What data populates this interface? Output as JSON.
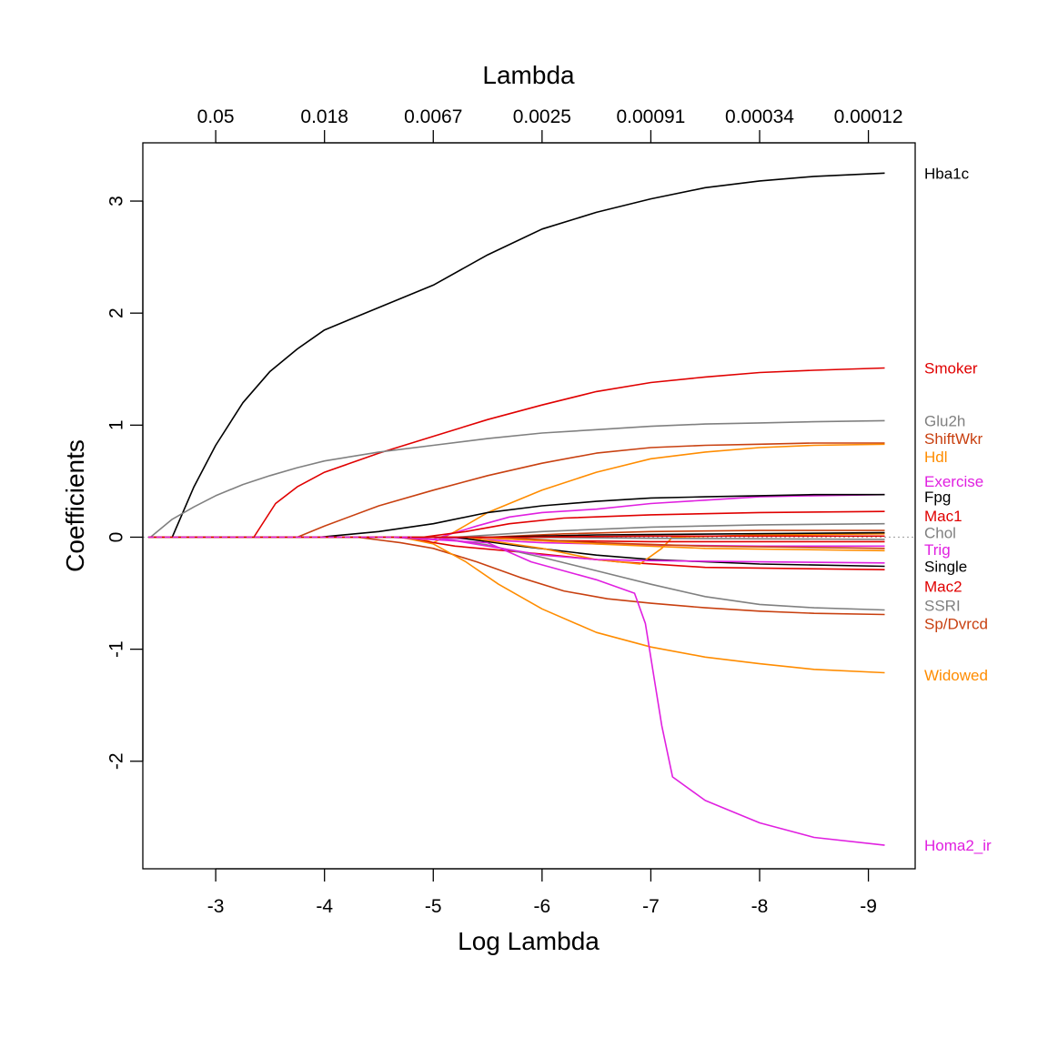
{
  "chart_data": {
    "type": "line",
    "title": "",
    "top_axis_title": "Lambda",
    "xlabel": "Log Lambda",
    "ylabel": "Coefficients",
    "xlim": [
      -2.33,
      -9.43
    ],
    "ylim": [
      -2.96,
      3.52
    ],
    "x_ticks": [
      {
        "value": -3,
        "label": "-3"
      },
      {
        "value": -4,
        "label": "-4"
      },
      {
        "value": -5,
        "label": "-5"
      },
      {
        "value": -6,
        "label": "-6"
      },
      {
        "value": -7,
        "label": "-7"
      },
      {
        "value": -8,
        "label": "-8"
      },
      {
        "value": -9,
        "label": "-9"
      }
    ],
    "y_ticks": [
      {
        "value": -2,
        "label": "-2"
      },
      {
        "value": -1,
        "label": "-1"
      },
      {
        "value": 0,
        "label": "0"
      },
      {
        "value": 1,
        "label": "1"
      },
      {
        "value": 2,
        "label": "2"
      },
      {
        "value": 3,
        "label": "3"
      }
    ],
    "top_ticks": [
      {
        "value": -3,
        "label": "0.05"
      },
      {
        "value": -4,
        "label": "0.018"
      },
      {
        "value": -5,
        "label": "0.0067"
      },
      {
        "value": -6,
        "label": "0.0025"
      },
      {
        "value": -7,
        "label": "0.00091"
      },
      {
        "value": -8,
        "label": "0.00034"
      },
      {
        "value": -9,
        "label": "0.00012"
      }
    ],
    "zero_line": {
      "value": 0,
      "color": "#aaaaaa"
    },
    "label_x": -9.2,
    "series": [
      {
        "name": "Hba1c",
        "color": "#000000",
        "label_y": 3.25,
        "points": [
          [
            -2.6,
            0
          ],
          [
            -2.8,
            0.45
          ],
          [
            -3.0,
            0.82
          ],
          [
            -3.25,
            1.2
          ],
          [
            -3.5,
            1.48
          ],
          [
            -3.75,
            1.68
          ],
          [
            -4.0,
            1.85
          ],
          [
            -4.5,
            2.05
          ],
          [
            -5.0,
            2.25
          ],
          [
            -5.5,
            2.52
          ],
          [
            -6.0,
            2.75
          ],
          [
            -6.5,
            2.9
          ],
          [
            -7.0,
            3.02
          ],
          [
            -7.5,
            3.12
          ],
          [
            -8.0,
            3.18
          ],
          [
            -8.5,
            3.22
          ],
          [
            -9.15,
            3.25
          ]
        ]
      },
      {
        "name": "Smoker",
        "color": "#e00000",
        "label_y": 1.51,
        "points": [
          [
            -3.35,
            0
          ],
          [
            -3.55,
            0.3
          ],
          [
            -3.75,
            0.45
          ],
          [
            -4.0,
            0.58
          ],
          [
            -4.5,
            0.75
          ],
          [
            -5.0,
            0.9
          ],
          [
            -5.5,
            1.05
          ],
          [
            -6.0,
            1.18
          ],
          [
            -6.5,
            1.3
          ],
          [
            -7.0,
            1.38
          ],
          [
            -7.5,
            1.43
          ],
          [
            -8.0,
            1.47
          ],
          [
            -8.5,
            1.49
          ],
          [
            -9.15,
            1.51
          ]
        ]
      },
      {
        "name": "Glu2h",
        "color": "#808080",
        "label_y": 1.04,
        "points": [
          [
            -2.4,
            0
          ],
          [
            -2.6,
            0.16
          ],
          [
            -2.8,
            0.27
          ],
          [
            -3.0,
            0.37
          ],
          [
            -3.25,
            0.47
          ],
          [
            -3.5,
            0.55
          ],
          [
            -3.75,
            0.62
          ],
          [
            -4.0,
            0.68
          ],
          [
            -4.5,
            0.76
          ],
          [
            -5.0,
            0.82
          ],
          [
            -5.5,
            0.88
          ],
          [
            -6.0,
            0.93
          ],
          [
            -6.5,
            0.96
          ],
          [
            -7.0,
            0.99
          ],
          [
            -7.5,
            1.01
          ],
          [
            -8.0,
            1.02
          ],
          [
            -8.5,
            1.03
          ],
          [
            -9.15,
            1.04
          ]
        ]
      },
      {
        "name": "ShiftWkr",
        "color": "#c84010",
        "label_y": 0.88,
        "points": [
          [
            -3.75,
            0
          ],
          [
            -4.0,
            0.1
          ],
          [
            -4.5,
            0.28
          ],
          [
            -5.0,
            0.42
          ],
          [
            -5.5,
            0.55
          ],
          [
            -6.0,
            0.66
          ],
          [
            -6.5,
            0.75
          ],
          [
            -7.0,
            0.8
          ],
          [
            -7.5,
            0.82
          ],
          [
            -8.0,
            0.83
          ],
          [
            -8.5,
            0.84
          ],
          [
            -9.15,
            0.84
          ]
        ]
      },
      {
        "name": "Hdl",
        "color": "#ff8c00",
        "label_y": 0.72,
        "points": [
          [
            -4.85,
            0
          ],
          [
            -5.0,
            -0.05
          ],
          [
            -5.2,
            0.05
          ],
          [
            -5.5,
            0.22
          ],
          [
            -6.0,
            0.42
          ],
          [
            -6.5,
            0.58
          ],
          [
            -7.0,
            0.7
          ],
          [
            -7.5,
            0.76
          ],
          [
            -8.0,
            0.8
          ],
          [
            -8.5,
            0.82
          ],
          [
            -9.15,
            0.83
          ]
        ]
      },
      {
        "name": "Exercise",
        "color": "#e020e0",
        "label_y": 0.5,
        "points": [
          [
            -4.8,
            0
          ],
          [
            -5.0,
            -0.02
          ],
          [
            -5.4,
            0.1
          ],
          [
            -5.7,
            0.18
          ],
          [
            -6.0,
            0.22
          ],
          [
            -6.5,
            0.25
          ],
          [
            -7.0,
            0.3
          ],
          [
            -7.5,
            0.33
          ],
          [
            -8.0,
            0.36
          ],
          [
            -8.5,
            0.37
          ],
          [
            -9.15,
            0.38
          ]
        ]
      },
      {
        "name": "Fpg",
        "color": "#000000",
        "label_y": 0.36,
        "points": [
          [
            -3.95,
            0
          ],
          [
            -4.5,
            0.05
          ],
          [
            -5.0,
            0.12
          ],
          [
            -5.5,
            0.22
          ],
          [
            -6.0,
            0.28
          ],
          [
            -6.5,
            0.32
          ],
          [
            -7.0,
            0.35
          ],
          [
            -7.5,
            0.36
          ],
          [
            -8.0,
            0.37
          ],
          [
            -8.5,
            0.38
          ],
          [
            -9.15,
            0.38
          ]
        ]
      },
      {
        "name": "Mac1",
        "color": "#e00000",
        "label_y": 0.19,
        "points": [
          [
            -4.9,
            0
          ],
          [
            -5.3,
            0.05
          ],
          [
            -5.7,
            0.12
          ],
          [
            -6.2,
            0.17
          ],
          [
            -7.0,
            0.2
          ],
          [
            -8.0,
            0.22
          ],
          [
            -9.15,
            0.23
          ]
        ]
      },
      {
        "name": "Chol",
        "color": "#808080",
        "label_y": 0.04,
        "points": [
          [
            -5.2,
            0
          ],
          [
            -6.0,
            0.05
          ],
          [
            -7.0,
            0.09
          ],
          [
            -8.0,
            0.11
          ],
          [
            -9.15,
            0.12
          ]
        ]
      },
      {
        "name": "Trig",
        "color": "#e020e0",
        "label_y": -0.11,
        "points": [
          [
            -5.0,
            0
          ],
          [
            -6.0,
            -0.05
          ],
          [
            -7.0,
            -0.07
          ],
          [
            -8.0,
            -0.08
          ],
          [
            -9.15,
            -0.08
          ]
        ]
      },
      {
        "name": "Single",
        "color": "#000000",
        "label_y": -0.26,
        "points": [
          [
            -5.2,
            0
          ],
          [
            -5.8,
            -0.08
          ],
          [
            -6.5,
            -0.16
          ],
          [
            -7.0,
            -0.2
          ],
          [
            -8.0,
            -0.24
          ],
          [
            -9.15,
            -0.26
          ]
        ]
      },
      {
        "name": "Mac2",
        "color": "#e00000",
        "label_y": -0.44,
        "points": [
          [
            -4.7,
            0
          ],
          [
            -5.2,
            -0.08
          ],
          [
            -6.0,
            -0.15
          ],
          [
            -6.7,
            -0.22
          ],
          [
            -7.5,
            -0.27
          ],
          [
            -9.15,
            -0.29
          ]
        ]
      },
      {
        "name": "SSRI",
        "color": "#808080",
        "label_y": -0.61,
        "points": [
          [
            -5.0,
            0
          ],
          [
            -5.5,
            -0.07
          ],
          [
            -6.0,
            -0.18
          ],
          [
            -6.5,
            -0.3
          ],
          [
            -7.0,
            -0.42
          ],
          [
            -7.5,
            -0.53
          ],
          [
            -8.0,
            -0.6
          ],
          [
            -8.5,
            -0.63
          ],
          [
            -9.15,
            -0.65
          ]
        ]
      },
      {
        "name": "Sp/Dvrcd",
        "color": "#c84010",
        "label_y": -0.77,
        "points": [
          [
            -4.3,
            0
          ],
          [
            -4.7,
            -0.05
          ],
          [
            -5.0,
            -0.1
          ],
          [
            -5.4,
            -0.22
          ],
          [
            -5.8,
            -0.36
          ],
          [
            -6.2,
            -0.48
          ],
          [
            -6.6,
            -0.55
          ],
          [
            -7.0,
            -0.59
          ],
          [
            -7.5,
            -0.63
          ],
          [
            -8.0,
            -0.66
          ],
          [
            -8.5,
            -0.68
          ],
          [
            -9.15,
            -0.69
          ]
        ]
      },
      {
        "name": "Widowed",
        "color": "#ff8c00",
        "label_y": -1.23,
        "points": [
          [
            -4.7,
            0
          ],
          [
            -5.0,
            -0.06
          ],
          [
            -5.3,
            -0.22
          ],
          [
            -5.6,
            -0.42
          ],
          [
            -6.0,
            -0.64
          ],
          [
            -6.5,
            -0.85
          ],
          [
            -7.0,
            -0.98
          ],
          [
            -7.5,
            -1.07
          ],
          [
            -8.0,
            -1.13
          ],
          [
            -8.5,
            -1.18
          ],
          [
            -9.15,
            -1.21
          ]
        ]
      },
      {
        "name": "Homa2_ir",
        "color": "#e020e0",
        "label_y": -2.75,
        "points": [
          [
            -4.6,
            0
          ],
          [
            -5.5,
            -0.05
          ],
          [
            -5.9,
            -0.22
          ],
          [
            -6.5,
            -0.38
          ],
          [
            -6.85,
            -0.5
          ],
          [
            -6.95,
            -0.77
          ],
          [
            -7.1,
            -1.68
          ],
          [
            -7.2,
            -2.14
          ],
          [
            -7.5,
            -2.35
          ],
          [
            -8.0,
            -2.55
          ],
          [
            -8.5,
            -2.68
          ],
          [
            -9.15,
            -2.75
          ]
        ]
      }
    ],
    "extra_lines": [
      {
        "color": "#ff8c00",
        "points": [
          [
            -5.3,
            0
          ],
          [
            -6.0,
            -0.1
          ],
          [
            -6.5,
            -0.2
          ],
          [
            -6.9,
            -0.24
          ],
          [
            -7.1,
            -0.1
          ],
          [
            -7.2,
            0
          ],
          [
            -8.0,
            0.02
          ],
          [
            -9.15,
            0.03
          ]
        ]
      },
      {
        "color": "#e020e0",
        "points": [
          [
            -5.0,
            0
          ],
          [
            -5.5,
            -0.08
          ],
          [
            -6.0,
            -0.16
          ],
          [
            -6.5,
            -0.2
          ],
          [
            -7.0,
            -0.21
          ],
          [
            -8.0,
            -0.22
          ],
          [
            -9.15,
            -0.23
          ]
        ]
      },
      {
        "color": "#c84010",
        "points": [
          [
            -5.5,
            0
          ],
          [
            -6.2,
            0.03
          ],
          [
            -7.0,
            0.05
          ],
          [
            -8.0,
            0.06
          ],
          [
            -9.15,
            0.06
          ]
        ]
      },
      {
        "color": "#000000",
        "points": [
          [
            -5.5,
            0
          ],
          [
            -6.5,
            0.02
          ],
          [
            -9.15,
            0.04
          ]
        ]
      },
      {
        "color": "#e00000",
        "points": [
          [
            -5.3,
            0
          ],
          [
            -6.0,
            -0.03
          ],
          [
            -7.0,
            -0.04
          ],
          [
            -9.15,
            -0.04
          ]
        ]
      },
      {
        "color": "#c84010",
        "points": [
          [
            -5.6,
            0
          ],
          [
            -6.5,
            -0.05
          ],
          [
            -7.5,
            -0.08
          ],
          [
            -9.15,
            -0.1
          ]
        ]
      },
      {
        "color": "#ff8c00",
        "points": [
          [
            -5.4,
            0
          ],
          [
            -6.5,
            -0.06
          ],
          [
            -7.5,
            -0.1
          ],
          [
            -9.15,
            -0.12
          ]
        ]
      },
      {
        "color": "#808080",
        "points": [
          [
            -5.6,
            0
          ],
          [
            -7.0,
            -0.01
          ],
          [
            -9.15,
            -0.02
          ]
        ]
      },
      {
        "color": "#e00000",
        "points": [
          [
            -5.8,
            0
          ],
          [
            -7.0,
            0.01
          ],
          [
            -9.15,
            0.01
          ]
        ]
      }
    ]
  }
}
